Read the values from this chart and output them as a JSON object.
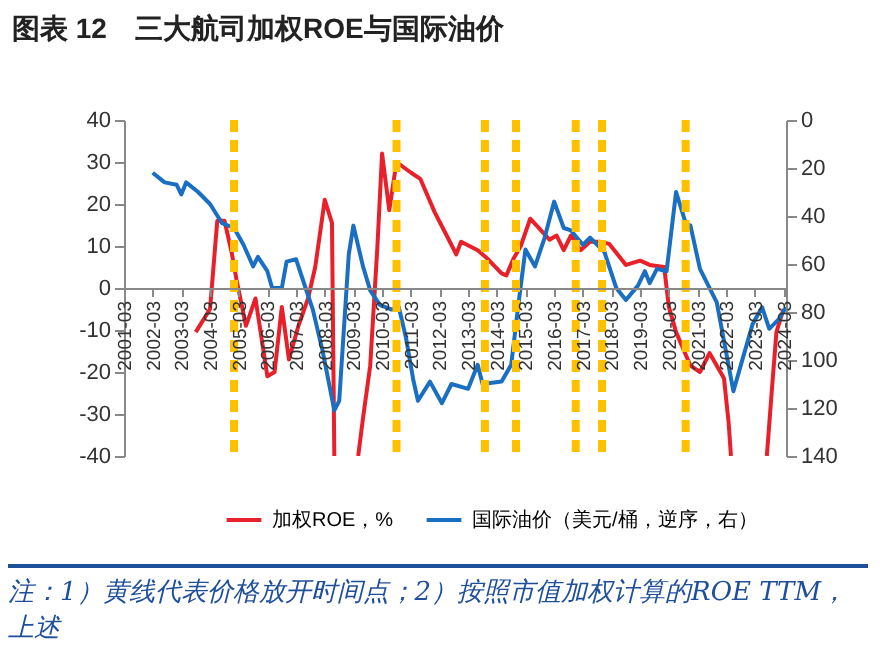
{
  "chart_data": {
    "type": "line",
    "title": "图表 12　三大航司加权ROE与国际油价",
    "xlim": [
      "2001-03",
      "2024-04"
    ],
    "xticks": [
      "2001-03",
      "2002-03",
      "2003-03",
      "2004-03",
      "2005-03",
      "2006-03",
      "2007-03",
      "2008-03",
      "2009-03",
      "2010-03",
      "2011-03",
      "2012-03",
      "2013-03",
      "2014-03",
      "2015-03",
      "2016-03",
      "2017-03",
      "2018-03",
      "2019-03",
      "2020-03",
      "2021-03",
      "2022-03",
      "2023-03",
      "2024-03"
    ],
    "ylim": [
      -40,
      40
    ],
    "yticks": [
      -40,
      -30,
      -20,
      -10,
      0,
      10,
      20,
      30,
      40
    ],
    "y2lim": [
      140,
      0
    ],
    "y2ticks": [
      0,
      20,
      40,
      60,
      80,
      100,
      120,
      140
    ],
    "legend": "bottom",
    "series": [
      {
        "name": "加权ROE，%",
        "color": "#e8202a",
        "x": [
          "2003-09",
          "2004-03",
          "2004-06",
          "2004-09",
          "2004-12",
          "2005-02",
          "2005-06",
          "2005-10",
          "2006-03",
          "2006-06",
          "2006-09",
          "2006-12",
          "2007-04",
          "2007-08",
          "2007-11",
          "2008-03",
          "2008-06",
          "2008-07",
          "2008-12",
          "2009-05",
          "2009-07",
          "2009-10",
          "2010-01",
          "2010-03",
          "2010-06",
          "2010-09",
          "2011-03",
          "2011-07",
          "2012-01",
          "2012-06",
          "2012-10",
          "2012-12",
          "2013-07",
          "2013-11",
          "2014-05",
          "2014-07",
          "2014-10",
          "2015-01",
          "2015-05",
          "2015-09",
          "2016-01",
          "2016-04",
          "2016-07",
          "2016-10",
          "2017-02",
          "2017-06",
          "2017-10",
          "2018-02",
          "2018-09",
          "2019-03",
          "2019-07",
          "2020-01",
          "2020-03",
          "2020-06",
          "2020-12",
          "2021-04",
          "2021-08",
          "2022-02",
          "2022-04",
          "2022-05",
          "2023-01",
          "2023-08",
          "2023-10",
          "2023-12",
          "2024-03"
        ],
        "values": [
          -10.5,
          -5,
          16,
          16,
          8.5,
          2,
          -9,
          -2.5,
          -21,
          -20,
          -4.5,
          -17,
          -9,
          -2.5,
          5,
          21,
          15.5,
          -40,
          null,
          -40,
          -31,
          -18.5,
          10,
          32,
          18.5,
          30,
          27.5,
          26,
          18,
          12.5,
          8,
          11,
          9,
          7,
          3.5,
          3,
          7,
          10,
          16.5,
          14,
          11.5,
          12.5,
          9,
          12.5,
          9,
          11,
          11,
          10.5,
          5.5,
          6.5,
          5.5,
          5,
          -4.5,
          -10.5,
          -18.5,
          -20,
          -15.5,
          -21.5,
          -32,
          -40,
          null,
          -40,
          -25,
          -10.5,
          -5
        ]
      },
      {
        "name": "国际油价（美元/桶，逆序，右）",
        "color": "#1a6fc2",
        "axis": "y2",
        "x": [
          "2002-03",
          "2002-08",
          "2003-01",
          "2003-03",
          "2003-05",
          "2003-10",
          "2004-03",
          "2004-08",
          "2005-01",
          "2005-05",
          "2005-09",
          "2005-11",
          "2006-03",
          "2006-05",
          "2006-09",
          "2006-11",
          "2007-03",
          "2007-07",
          "2007-10",
          "2008-02",
          "2008-07",
          "2008-09",
          "2009-01",
          "2009-03",
          "2009-07",
          "2009-10",
          "2010-02",
          "2010-07",
          "2010-10",
          "2011-01",
          "2011-04",
          "2011-06",
          "2011-11",
          "2012-04",
          "2012-08",
          "2013-03",
          "2013-07",
          "2013-09",
          "2014-05",
          "2014-09",
          "2014-12",
          "2015-03",
          "2015-07",
          "2015-11",
          "2016-03",
          "2016-07",
          "2016-10",
          "2017-03",
          "2017-06",
          "2017-12",
          "2018-05",
          "2018-09",
          "2019-02",
          "2019-05",
          "2019-07",
          "2019-10",
          "2020-02",
          "2020-06",
          "2020-10",
          "2020-12",
          "2021-04",
          "2021-11",
          "2022-06",
          "2022-10",
          "2023-02",
          "2023-06",
          "2023-09",
          "2024-01",
          "2024-04"
        ],
        "values": [
          22,
          26,
          27,
          31,
          26,
          30,
          35,
          43,
          45,
          52,
          61,
          57,
          63,
          70,
          70,
          59,
          58,
          70,
          79,
          96,
          121,
          117,
          56,
          44,
          61,
          71,
          77,
          79,
          78,
          91,
          108,
          117,
          109,
          118,
          110,
          112,
          102,
          110,
          109,
          102,
          77,
          54,
          61,
          49,
          34,
          45,
          46,
          52,
          49,
          55,
          70,
          75,
          69,
          63,
          68,
          62,
          63,
          30,
          43,
          44,
          62,
          76,
          113,
          99,
          85,
          78,
          87,
          83,
          78
        ]
      }
    ],
    "ref_lines": [
      {
        "axis": "x",
        "value": "2005-01",
        "color": "#ffc000",
        "line_style": "dashed"
      },
      {
        "axis": "x",
        "value": "2010-09",
        "color": "#ffc000",
        "line_style": "dashed"
      },
      {
        "axis": "x",
        "value": "2013-10",
        "color": "#ffc000",
        "line_style": "dashed"
      },
      {
        "axis": "x",
        "value": "2014-11",
        "color": "#ffc000",
        "line_style": "dashed"
      },
      {
        "axis": "x",
        "value": "2016-12",
        "color": "#ffc000",
        "line_style": "dashed"
      },
      {
        "axis": "x",
        "value": "2017-11",
        "color": "#ffc000",
        "line_style": "dashed"
      },
      {
        "axis": "x",
        "value": "2020-10",
        "color": "#ffc000",
        "line_style": "dashed"
      }
    ],
    "annotations": [
      "注：1）黄线代表价格放开时间点；2）按照市值加权计算的ROE TTM，上述"
    ]
  }
}
